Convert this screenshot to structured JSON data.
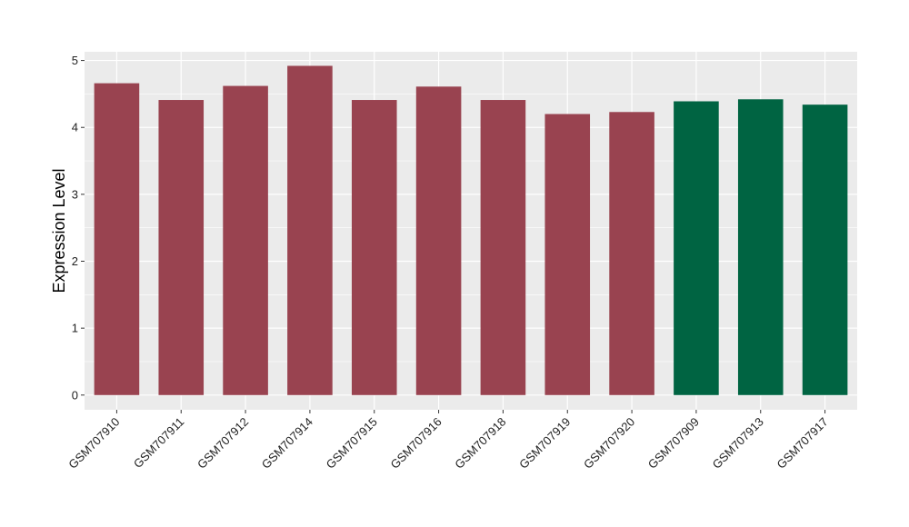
{
  "chart_data": {
    "type": "bar",
    "title": "",
    "xlabel": "",
    "ylabel": "Expression Level",
    "ylim": [
      -0.22,
      5.13
    ],
    "yticks": [
      0,
      1,
      2,
      3,
      4,
      5
    ],
    "grid": true,
    "legend": "none",
    "panel_color": "#ebebeb",
    "grid_color": "#ffffff",
    "categories": [
      "GSM707910",
      "GSM707911",
      "GSM707912",
      "GSM707914",
      "GSM707915",
      "GSM707916",
      "GSM707918",
      "GSM707919",
      "GSM707920",
      "GSM707909",
      "GSM707913",
      "GSM707917"
    ],
    "values": [
      4.66,
      4.41,
      4.62,
      4.92,
      4.41,
      4.61,
      4.41,
      4.2,
      4.23,
      4.39,
      4.42,
      4.34
    ],
    "groups": [
      "a",
      "a",
      "a",
      "a",
      "a",
      "a",
      "a",
      "a",
      "a",
      "b",
      "b",
      "b"
    ],
    "group_colors": {
      "a": "#994350",
      "b": "#006442"
    }
  }
}
